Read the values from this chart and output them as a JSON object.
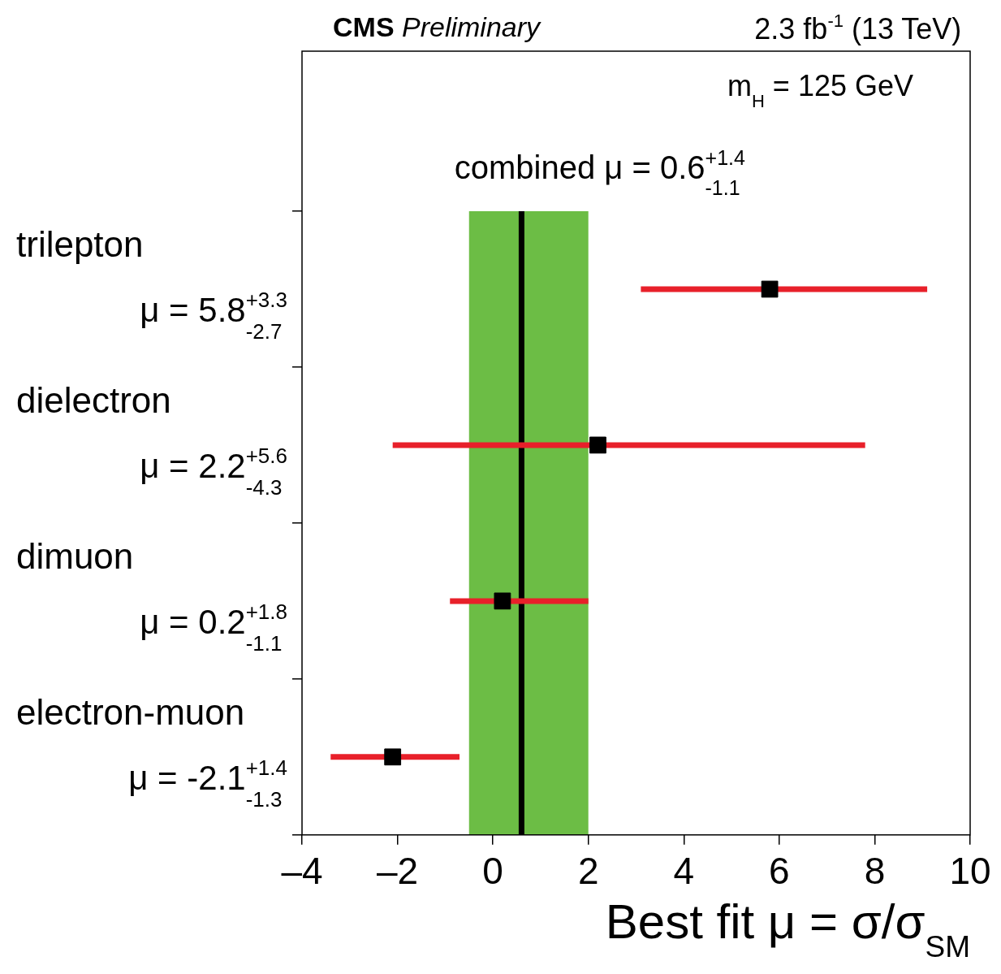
{
  "chart_data": {
    "type": "scatter",
    "orientation": "horizontal",
    "title": "CMS Preliminary",
    "subtitle": "2.3 fb$^{-1}$ (13 TeV)",
    "xlabel": "Best fit μ = σ/σ$_{SM}$",
    "categories": [
      "trilepton",
      "dielectron",
      "dimuon",
      "electron-muon"
    ],
    "values": [
      5.8,
      2.2,
      0.2,
      -2.1
    ],
    "errors": [
      [
        3.1,
        9.1
      ],
      [
        -2.1,
        7.8
      ],
      [
        -0.9,
        2.0
      ],
      [
        -3.4,
        -0.7
      ]
    ],
    "color": "#000000",
    "marker": "square",
    "xlim": [
      -4,
      10
    ],
    "xticks": [
      {
        "value": -4,
        "label": "–4"
      },
      {
        "value": -2,
        "label": "–2"
      },
      0,
      2,
      4,
      6,
      8,
      10
    ],
    "ref_lines": [
      {
        "axis": "x",
        "value": 0.6,
        "label": "combined μ = 0.6$^{+1.4}$$_{-1.1}$",
        "color": "#000000"
      }
    ],
    "bands": [
      {
        "axis": "x",
        "from": -0.5,
        "to": 2.0,
        "color": "#6cbd45"
      }
    ],
    "annotations": [
      "m$_{H}$ = 125 GeV",
      "μ = 5.8$^{+3.3}$$_{-2.7}$",
      "μ = 2.2$^{+5.6}$$_{-4.3}$",
      "μ = 0.2$^{+1.8}$$_{-1.1}$",
      "μ = -2.1$^{+1.4}$$_{-1.3}$"
    ],
    "grid": false,
    "legend": false
  }
}
